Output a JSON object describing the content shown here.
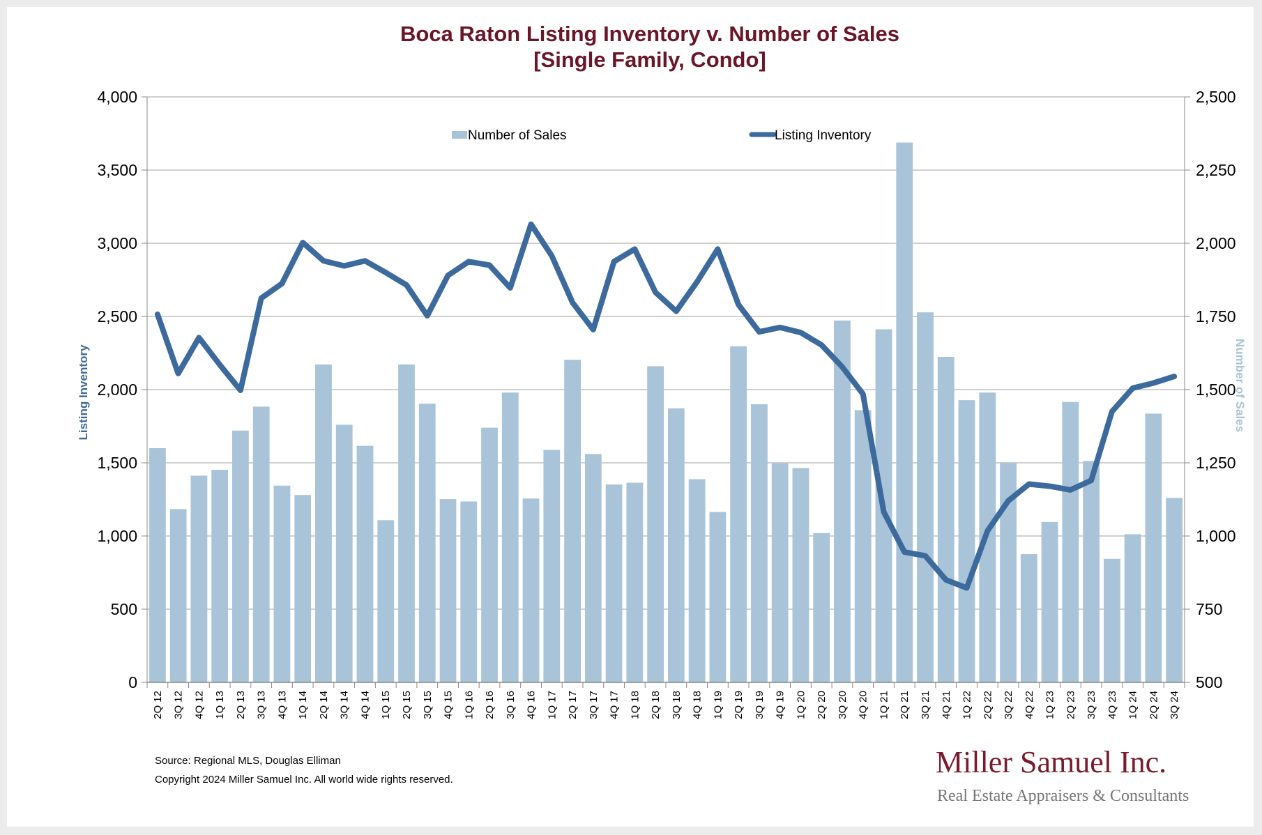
{
  "colors": {
    "title": "#6b1528",
    "bars": "#a9c4d8",
    "line": "#3d6a9c",
    "left_axis_title": "#3d6a9c",
    "right_axis_title": "#a9c4d8",
    "gridline": "#a0a0a0",
    "brand": "#7a1a2c",
    "brand_sub": "#777777"
  },
  "chart_data": {
    "type": "bar+line",
    "title": "Boca Raton Listing Inventory v. Number of Sales",
    "subtitle": "[Single Family, Condo]",
    "categories": [
      "2Q 12",
      "3Q 12",
      "4Q 12",
      "1Q 13",
      "2Q 13",
      "3Q 13",
      "4Q 13",
      "1Q 14",
      "2Q 14",
      "3Q 14",
      "4Q 14",
      "1Q 15",
      "2Q 15",
      "3Q 15",
      "4Q 15",
      "1Q 16",
      "2Q 16",
      "3Q 16",
      "4Q 16",
      "1Q 17",
      "2Q 17",
      "3Q 17",
      "4Q 17",
      "1Q 18",
      "2Q 18",
      "3Q 18",
      "4Q 18",
      "1Q 19",
      "2Q 19",
      "3Q 19",
      "4Q 19",
      "1Q 20",
      "2Q 20",
      "3Q 20",
      "4Q 20",
      "1Q 21",
      "2Q 21",
      "3Q 21",
      "4Q 21",
      "1Q 22",
      "2Q 22",
      "3Q 22",
      "4Q 22",
      "1Q 23",
      "2Q 23",
      "3Q 23",
      "4Q 23",
      "1Q 24",
      "2Q 24",
      "3Q 24"
    ],
    "series": [
      {
        "name": "Number of Sales",
        "type": "bar",
        "axis": "right",
        "values": [
          1300,
          1092,
          1206,
          1226,
          1360,
          1442,
          1172,
          1140,
          1586,
          1380,
          1308,
          1054,
          1586,
          1452,
          1126,
          1118,
          1370,
          1490,
          1128,
          1294,
          1602,
          1280,
          1176,
          1182,
          1580,
          1436,
          1194,
          1082,
          1648,
          1450,
          1248,
          1232,
          1010,
          1736,
          1430,
          1706,
          2344,
          1764,
          1612,
          1464,
          1490,
          1250,
          938,
          1048,
          1458,
          1256,
          922,
          1006,
          1418,
          1130
        ]
      },
      {
        "name": "Listing Inventory",
        "type": "line",
        "axis": "left",
        "values": [
          2515,
          2110,
          2355,
          2170,
          1995,
          2625,
          2725,
          3005,
          2880,
          2845,
          2880,
          2800,
          2715,
          2505,
          2780,
          2875,
          2850,
          2695,
          3130,
          2915,
          2595,
          2410,
          2875,
          2960,
          2665,
          2535,
          2735,
          2960,
          2580,
          2395,
          2425,
          2390,
          2305,
          2155,
          1970,
          1165,
          890,
          865,
          700,
          645,
          1035,
          1240,
          1355,
          1340,
          1315,
          1380,
          1850,
          2010,
          2045,
          2090
        ]
      }
    ],
    "y_left": {
      "label": "Listing Inventory",
      "min": 0,
      "max": 4000,
      "step": 500,
      "ticks": [
        "0",
        "500",
        "1,000",
        "1,500",
        "2,000",
        "2,500",
        "3,000",
        "3,500",
        "4,000"
      ]
    },
    "y_right": {
      "label": "Number of Sales",
      "min": 500,
      "max": 2500,
      "step": 250,
      "ticks": [
        "500",
        "750",
        "1,000",
        "1,250",
        "1,500",
        "1,750",
        "2,000",
        "2,250",
        "2,500"
      ]
    },
    "grid": true,
    "legend": {
      "placement": "top-center",
      "items": [
        "Number of Sales",
        "Listing Inventory"
      ]
    }
  },
  "footer": {
    "source": "Source: Regional MLS, Douglas Elliman",
    "copyright": "Copyright 2024 Miller Samuel Inc.  All world wide rights reserved."
  },
  "brand": {
    "name": "Miller Samuel Inc.",
    "tagline": "Real Estate Appraisers & Consultants"
  }
}
